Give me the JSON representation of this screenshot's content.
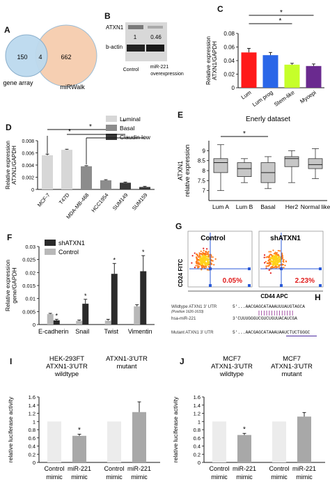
{
  "figure": {
    "panel_labels": [
      "A",
      "B",
      "C",
      "D",
      "E",
      "F",
      "G",
      "H",
      "I",
      "J"
    ],
    "star": "*"
  },
  "venn": {
    "left_count": "150",
    "overlap_count": "4",
    "right_count": "662",
    "left_label": "gene array",
    "right_label": "miRWalk",
    "colors": {
      "left": "#bcd9ee",
      "right": "#f6cfb2"
    }
  },
  "blot": {
    "row1": "ATXN1",
    "row2": "b-actin",
    "val1": "1",
    "val2": "0.46",
    "lane1": "Control",
    "lane2": "miR-221",
    "lane2_sub": "overexpression"
  },
  "chart_data": [
    {
      "id": "C",
      "type": "bar",
      "categories": [
        "Lum",
        "Lum prog",
        "Stem-like",
        "Myoepi"
      ],
      "values": [
        0.052,
        0.048,
        0.034,
        0.032
      ],
      "errors": [
        0.006,
        0.004,
        0.002,
        0.003
      ],
      "colors": [
        "#ff1a1a",
        "#2a66e8",
        "#c6ff2a",
        "#6a2a8f"
      ],
      "ylabel": "Relative expression\nATXN1/GAPDH",
      "ylim": [
        0,
        0.08
      ],
      "yticks": [
        "0",
        "0.02",
        "0.04",
        "0.06",
        "0.08"
      ]
    },
    {
      "id": "D",
      "type": "bar",
      "categories": [
        "MCF-7",
        "T47D",
        "MDA-MB-468",
        "HCC1954",
        "SUM149",
        "SUM159"
      ],
      "values": [
        0.0056,
        0.0065,
        0.0038,
        0.0015,
        0.0011,
        0.0004
      ],
      "errors": [
        0.0002,
        0.0001,
        0.0001,
        0.0001,
        0.0001,
        0.0001
      ],
      "groups": [
        "Luminal",
        "Luminal",
        "Basal",
        "Basal",
        "Claudin low",
        "Claudin low"
      ],
      "legend": [
        "Luminal",
        "Basal",
        "Claudin low"
      ],
      "legend_colors": [
        "#d7d7d7",
        "#8c8c8c",
        "#3a3a3a"
      ],
      "ylabel": "Relative expression\nATXN1/GAPDH",
      "ylim": [
        0,
        0.008
      ],
      "yticks": [
        "0",
        "0.002",
        "0.004",
        "0.006",
        "0.008"
      ]
    },
    {
      "id": "E",
      "type": "boxplot",
      "title": "Enerly dataset",
      "categories": [
        "Lum A",
        "Lum B",
        "Basal",
        "Her2",
        "Normal like"
      ],
      "boxes": [
        {
          "min": 7.0,
          "q1": 7.9,
          "median": 8.4,
          "q3": 8.6,
          "max": 9.3
        },
        {
          "min": 7.4,
          "q1": 7.7,
          "median": 8.1,
          "q3": 8.4,
          "max": 8.6
        },
        {
          "min": 7.1,
          "q1": 7.4,
          "median": 7.9,
          "q3": 8.4,
          "max": 8.7
        },
        {
          "min": 7.4,
          "q1": 8.2,
          "median": 8.6,
          "q3": 8.7,
          "max": 9.0
        },
        {
          "min": 7.6,
          "q1": 8.1,
          "median": 8.3,
          "q3": 8.6,
          "max": 9.1
        }
      ],
      "ylabel": "ATXN1\nrelative expression",
      "ylim": [
        6.5,
        9.5
      ],
      "yticks": [
        "7",
        "7.5",
        "8",
        "8.5",
        "9"
      ]
    },
    {
      "id": "F",
      "type": "bar",
      "categories": [
        "E-cadherin",
        "Snail",
        "Twist",
        "Vimentin"
      ],
      "series": [
        {
          "name": "shATXN1",
          "values": [
            0.0016,
            0.008,
            0.0195,
            0.0205
          ],
          "errors": [
            0.0004,
            0.0017,
            0.004,
            0.006
          ]
        },
        {
          "name": "Control",
          "values": [
            0.004,
            0.0014,
            0.0015,
            0.007
          ],
          "errors": [
            0.0003,
            0.0003,
            0.0005,
            0.0006
          ]
        }
      ],
      "series_colors": [
        "#2a2a2a",
        "#b8b8b8"
      ],
      "ylabel": "Relative expression\ngene/GAPDH",
      "ylim": [
        0,
        0.03
      ],
      "yticks": [
        "0",
        "0.005",
        "0.01",
        "0.015",
        "0.02",
        "0.025",
        "0.03"
      ]
    },
    {
      "id": "I",
      "type": "bar",
      "groups": [
        {
          "title": "HEK-293FT\nATXN1-3'UTR\nwildtype",
          "bars": [
            {
              "label": "Control\nmimic",
              "value": 1.0,
              "error": 0
            },
            {
              "label": "miR-221\nmimic",
              "value": 0.65,
              "error": 0.04
            }
          ]
        },
        {
          "title": "ATXN1-3'UTR\nmutant",
          "bars": [
            {
              "label": "Control\nmimic",
              "value": 1.0,
              "error": 0
            },
            {
              "label": "miR-221\nmimic",
              "value": 1.23,
              "error": 0.25
            }
          ]
        }
      ],
      "bar_colors": [
        "#ececec",
        "#a8a8a8"
      ],
      "ylabel": "relative luciferase activity",
      "ylim": [
        0,
        1.6
      ],
      "yticks": [
        "0",
        "0.2",
        "0.4",
        "0.6",
        "0.8",
        "1",
        "1.2",
        "1.4",
        "1.6"
      ]
    },
    {
      "id": "J",
      "type": "bar",
      "groups": [
        {
          "title": "MCF7\nATXN1-3'UTR\nwildtype",
          "bars": [
            {
              "label": "Control\nmimic",
              "value": 1.0,
              "error": 0
            },
            {
              "label": "miR-221\nmimic",
              "value": 0.67,
              "error": 0.04
            }
          ]
        },
        {
          "title": "MCF7\nATXN1-3'UTR\nmutant",
          "bars": [
            {
              "label": "Control\nmimic",
              "value": 1.0,
              "error": 0
            },
            {
              "label": "miR-221\nmimic",
              "value": 1.12,
              "error": 0.1
            }
          ]
        }
      ],
      "bar_colors": [
        "#ececec",
        "#a8a8a8"
      ],
      "ylabel": "relative luciferase activity",
      "ylim": [
        0,
        1.6
      ],
      "yticks": [
        "0",
        "0.2",
        "0.4",
        "0.6",
        "0.8",
        "1",
        "1.2",
        "1.4",
        "1.6"
      ]
    }
  ],
  "flow": {
    "left_title": "Control",
    "right_title": "shATXN1",
    "left_pct": "0.05%",
    "right_pct": "2.23%",
    "ylabel": "CD24  FITC",
    "xlabel": "CD44  APC"
  },
  "seqpanel": {
    "row1_label": "Wildtype ATXN1 3' UTR",
    "row1_pos": "(Position 1626-1633)",
    "row1_seq": "5'...AACGAGCATAAAUUUAUGTAGCA",
    "row2_label": "hsa-miR-221",
    "row2_seq": "3'CUUUGGGUCGUCUGUUACAUCGA",
    "row3_label": "Mutant ATXN1 3' UTR",
    "row3_seq": "5'...AACGAGCATAAAUAAUCTUCTGGGC"
  }
}
